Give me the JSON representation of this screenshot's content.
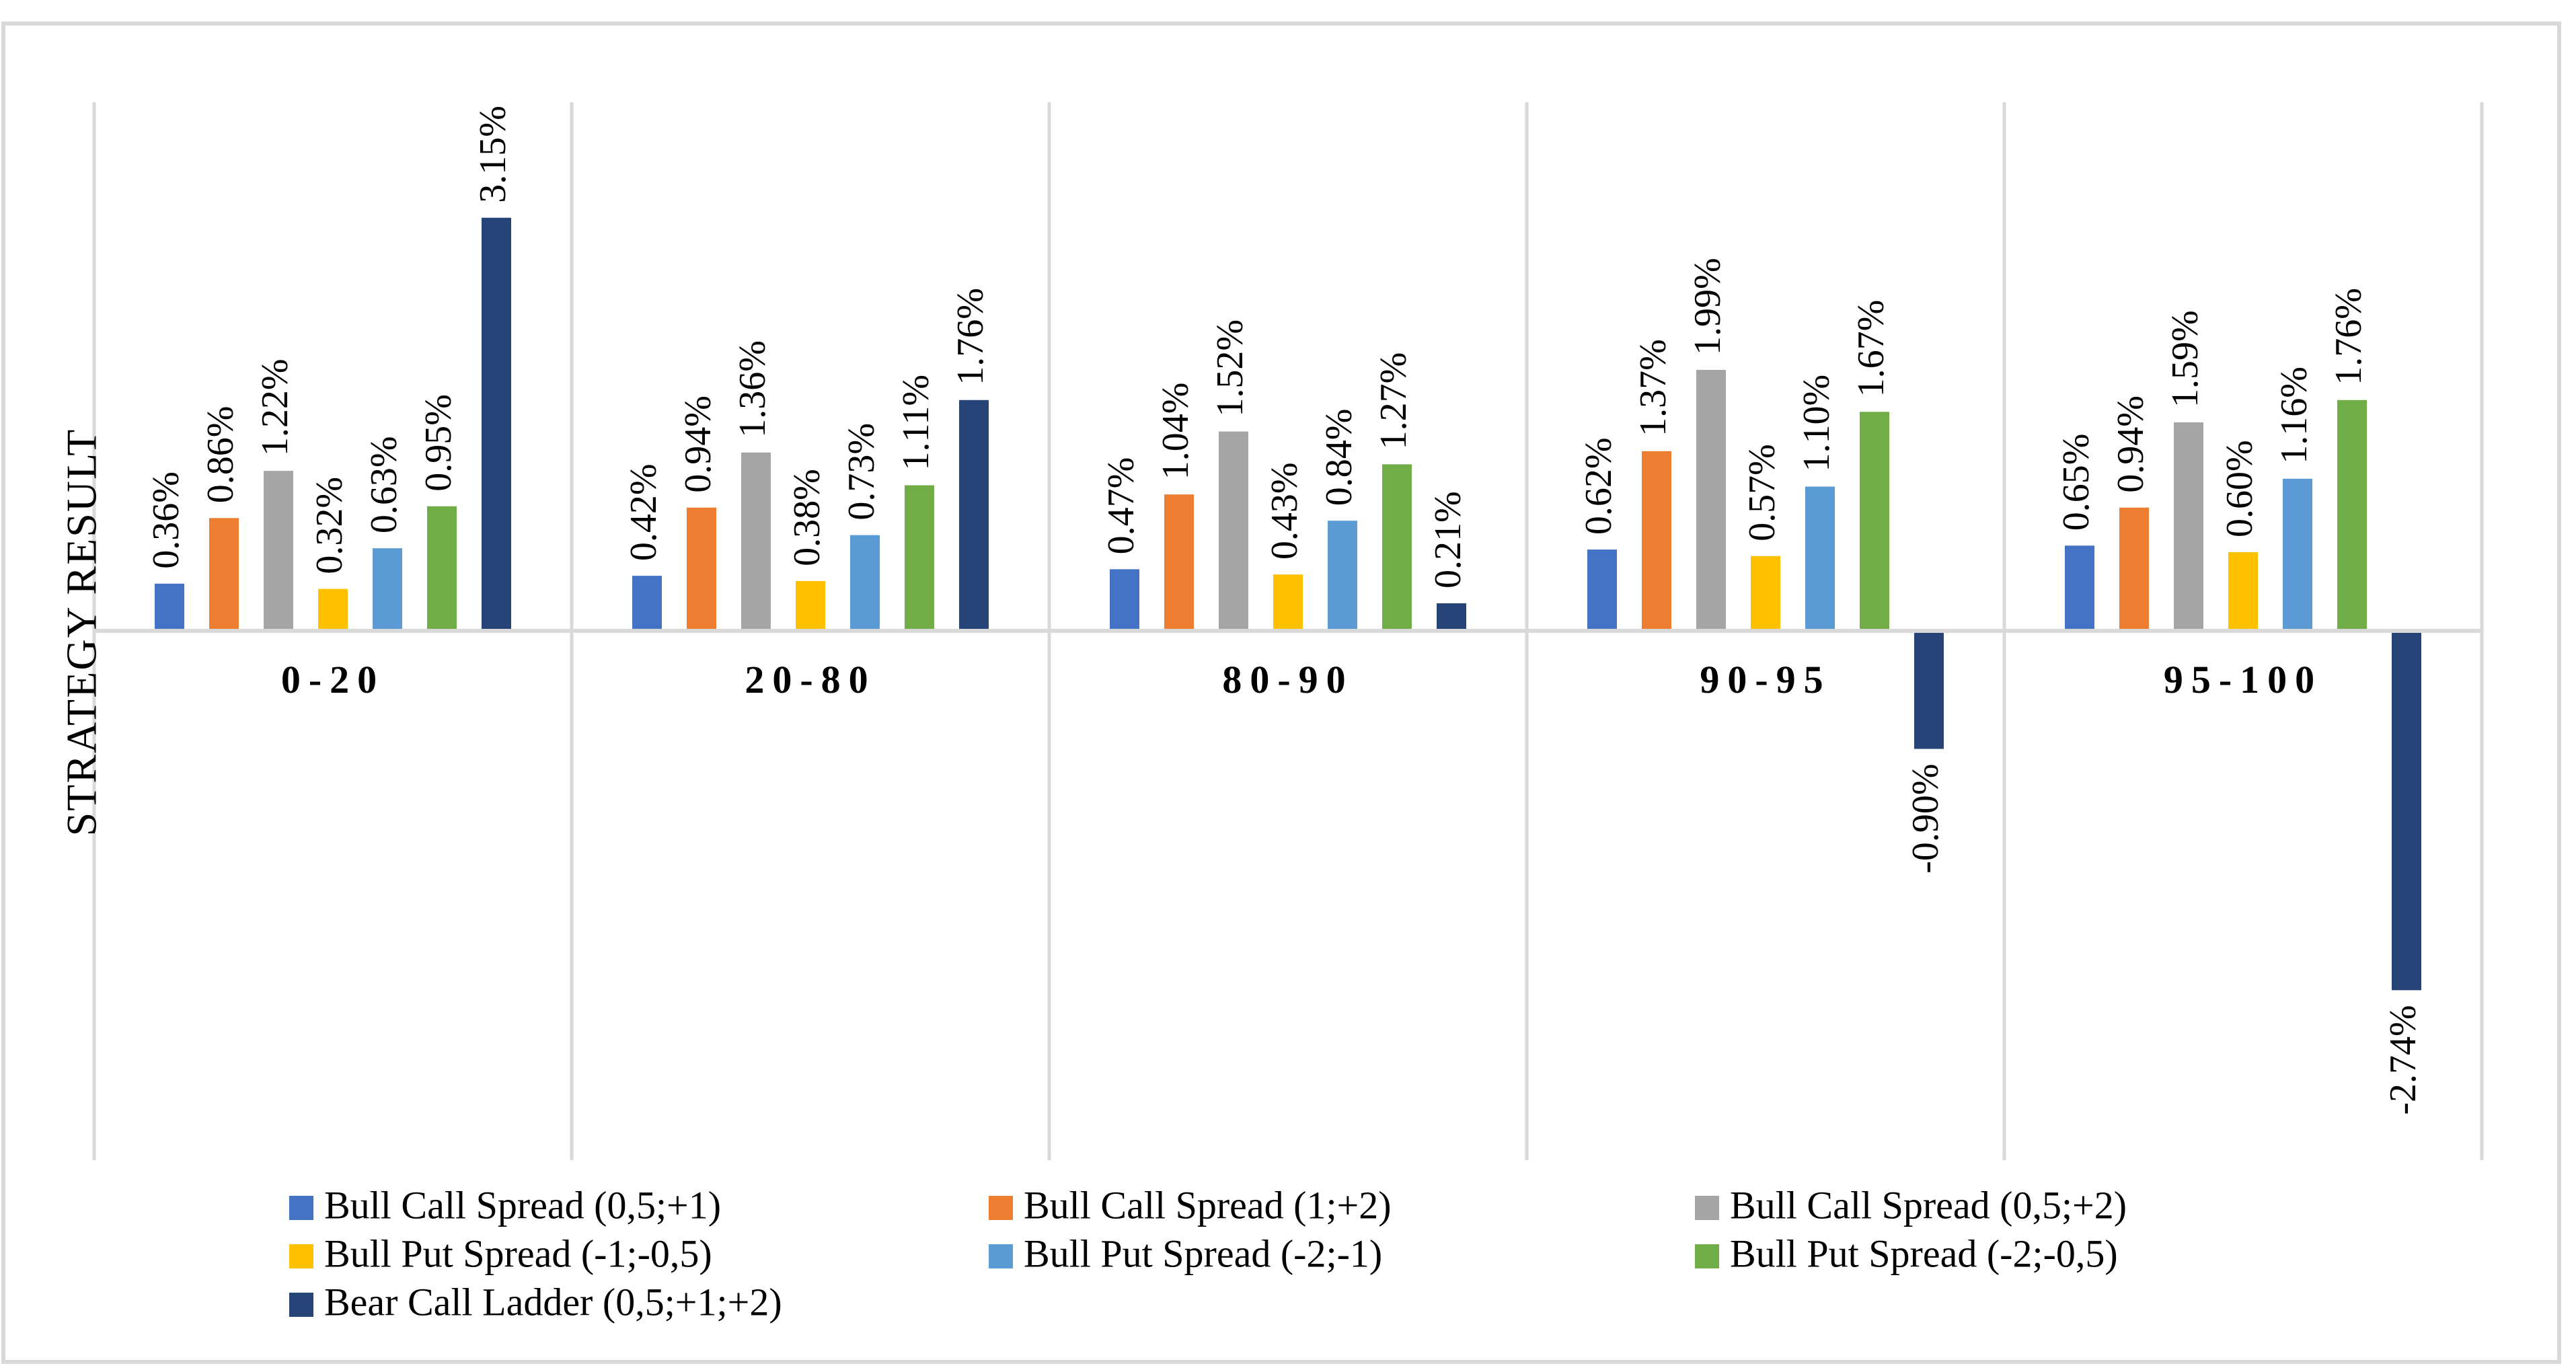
{
  "chart_data": {
    "type": "bar",
    "title": "",
    "xlabel": "",
    "ylabel": "STRATEGY RESULT",
    "ylim": [
      -3.67,
      3.72
    ],
    "grid": "vertical",
    "legend_position": "bottom",
    "categories": [
      "0-20",
      "20-80",
      "80-90",
      "90-95",
      "95-100"
    ],
    "series": [
      {
        "name": "Bull Call Spread (0,5;+1)",
        "color": "#4472c4",
        "values": [
          0.36,
          0.42,
          0.47,
          0.62,
          0.65
        ],
        "labels": [
          "0.36%",
          "0.42%",
          "0.47%",
          "0.62%",
          "0.65%"
        ]
      },
      {
        "name": "Bull Call Spread (1;+2)",
        "color": "#ed7d31",
        "values": [
          0.86,
          0.94,
          1.04,
          1.37,
          0.94
        ],
        "labels": [
          "0.86%",
          "0.94%",
          "1.04%",
          "1.37%",
          "0.94%"
        ]
      },
      {
        "name": "Bull Call Spread (0,5;+2)",
        "color": "#a5a5a5",
        "values": [
          1.22,
          1.36,
          1.52,
          1.99,
          1.59
        ],
        "labels": [
          "1.22%",
          "1.36%",
          "1.52%",
          "1.99%",
          "1.59%"
        ]
      },
      {
        "name": "Bull Put Spread (-1;-0,5)",
        "color": "#ffc000",
        "values": [
          0.32,
          0.38,
          0.43,
          0.57,
          0.6
        ],
        "labels": [
          "0.32%",
          "0.38%",
          "0.43%",
          "0.57%",
          "0.60%"
        ]
      },
      {
        "name": "Bull Put Spread (-2;-1)",
        "color": "#5b9bd5",
        "values": [
          0.63,
          0.73,
          0.84,
          1.1,
          1.16
        ],
        "labels": [
          "0.63%",
          "0.73%",
          "0.84%",
          "1.10%",
          "1.16%"
        ]
      },
      {
        "name": "Bull Put Spread (-2;-0,5)",
        "color": "#70ad47",
        "values": [
          0.95,
          1.11,
          1.27,
          1.67,
          1.76
        ],
        "labels": [
          "0.95%",
          "1.11%",
          "1.27%",
          "1.67%",
          "1.76%"
        ]
      },
      {
        "name": "Bear Call Ladder (0,5;+1;+2)",
        "color": "#264478",
        "values": [
          3.15,
          1.76,
          0.21,
          -0.9,
          -2.74
        ],
        "labels": [
          "3.15%",
          "1.76%",
          "0.21%",
          "-0.90%",
          "-2.74%"
        ]
      }
    ]
  },
  "colors": {
    "border": "#d9d9d9",
    "grid": "#d9d9d9",
    "axis": "#d9d9d9",
    "text": "#000000"
  }
}
